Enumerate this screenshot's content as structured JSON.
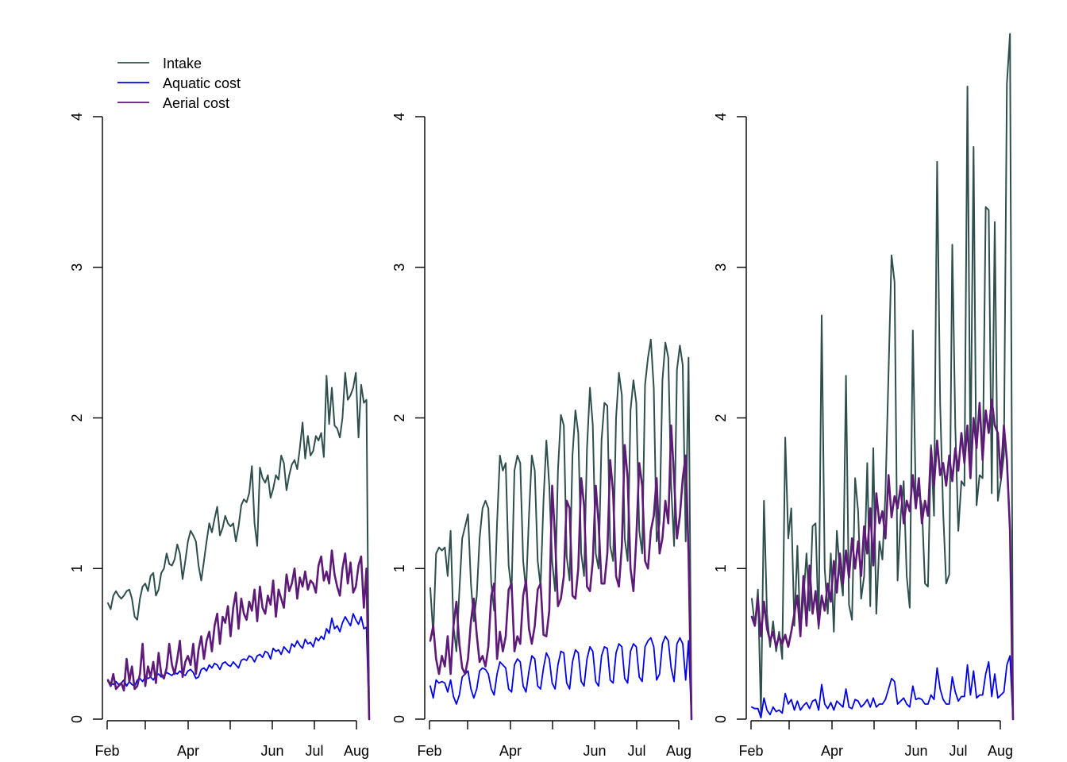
{
  "chart_data": [
    {
      "type": "line",
      "xlabel": "",
      "ylabel": "",
      "ylim": [
        0,
        4
      ],
      "x_tick_labels": [
        "Feb",
        "Apr",
        "Jun",
        "Jul",
        "Aug"
      ],
      "y_tick_labels": [
        "0",
        "1",
        "2",
        "3",
        "4"
      ],
      "legend": {
        "placement": "top-left",
        "entries": [
          "Intake",
          "Aquatic cost",
          "Aerial cost"
        ]
      },
      "series": [
        {
          "name": "Intake",
          "color": "#2F4F4F",
          "values": [
            0.77,
            0.73,
            0.82,
            0.85,
            0.82,
            0.8,
            0.82,
            0.85,
            0.86,
            0.8,
            0.68,
            0.66,
            0.8,
            0.88,
            0.9,
            0.85,
            0.95,
            0.97,
            0.82,
            0.86,
            0.97,
            1.0,
            1.1,
            1.03,
            1.02,
            1.06,
            1.16,
            1.1,
            0.93,
            1.05,
            1.18,
            1.25,
            1.22,
            1.18,
            1.02,
            0.92,
            1.05,
            1.18,
            1.3,
            1.24,
            1.33,
            1.41,
            1.22,
            1.27,
            1.35,
            1.3,
            1.28,
            1.3,
            1.18,
            1.28,
            1.42,
            1.46,
            1.44,
            1.5,
            1.68,
            1.3,
            1.15,
            1.67,
            1.6,
            1.57,
            1.62,
            1.47,
            1.53,
            1.62,
            1.59,
            1.75,
            1.7,
            1.52,
            1.62,
            1.69,
            1.72,
            1.66,
            1.8,
            1.97,
            1.73,
            1.88,
            1.75,
            1.78,
            1.88,
            1.85,
            1.9,
            1.74,
            2.28,
            1.96,
            2.2,
            1.95,
            1.93,
            1.87,
            2.0,
            2.3,
            2.12,
            2.15,
            2.2,
            2.3,
            1.87,
            2.22,
            2.1,
            2.12,
            0.0
          ]
        },
        {
          "name": "Aquatic cost",
          "color": "#0000EE",
          "values": [
            0.25,
            0.24,
            0.23,
            0.25,
            0.23,
            0.24,
            0.26,
            0.22,
            0.25,
            0.23,
            0.22,
            0.26,
            0.27,
            0.25,
            0.28,
            0.27,
            0.28,
            0.26,
            0.29,
            0.3,
            0.28,
            0.29,
            0.31,
            0.3,
            0.29,
            0.31,
            0.3,
            0.32,
            0.3,
            0.29,
            0.32,
            0.33,
            0.31,
            0.27,
            0.28,
            0.33,
            0.34,
            0.32,
            0.36,
            0.34,
            0.37,
            0.36,
            0.33,
            0.37,
            0.38,
            0.36,
            0.35,
            0.38,
            0.36,
            0.34,
            0.39,
            0.4,
            0.39,
            0.42,
            0.41,
            0.38,
            0.42,
            0.43,
            0.41,
            0.45,
            0.44,
            0.4,
            0.47,
            0.45,
            0.46,
            0.43,
            0.48,
            0.46,
            0.44,
            0.5,
            0.48,
            0.52,
            0.49,
            0.47,
            0.53,
            0.5,
            0.51,
            0.48,
            0.54,
            0.52,
            0.55,
            0.53,
            0.6,
            0.57,
            0.67,
            0.6,
            0.62,
            0.58,
            0.64,
            0.68,
            0.65,
            0.62,
            0.7,
            0.66,
            0.63,
            0.68,
            0.6,
            0.61,
            0.0
          ]
        },
        {
          "name": "Aerial cost",
          "color": "#5E1A78",
          "values": [
            0.26,
            0.22,
            0.3,
            0.2,
            0.22,
            0.24,
            0.19,
            0.4,
            0.25,
            0.35,
            0.2,
            0.22,
            0.3,
            0.5,
            0.22,
            0.35,
            0.28,
            0.38,
            0.24,
            0.44,
            0.3,
            0.27,
            0.34,
            0.5,
            0.36,
            0.3,
            0.4,
            0.52,
            0.28,
            0.38,
            0.42,
            0.36,
            0.5,
            0.3,
            0.46,
            0.55,
            0.4,
            0.52,
            0.58,
            0.45,
            0.62,
            0.7,
            0.5,
            0.68,
            0.64,
            0.75,
            0.55,
            0.74,
            0.84,
            0.6,
            0.8,
            0.7,
            0.66,
            0.78,
            0.72,
            0.86,
            0.65,
            0.88,
            0.74,
            0.7,
            0.82,
            0.76,
            0.92,
            0.68,
            0.86,
            0.8,
            0.74,
            0.96,
            0.85,
            0.9,
            1.0,
            0.8,
            0.94,
            0.88,
            0.98,
            0.86,
            0.92,
            0.9,
            0.84,
            1.02,
            1.08,
            0.92,
            0.98,
            0.9,
            1.12,
            0.96,
            0.88,
            0.82,
            1.0,
            1.1,
            0.9,
            1.04,
            0.84,
            0.88,
            1.02,
            1.08,
            0.74,
            1.0,
            0.0
          ]
        }
      ]
    },
    {
      "type": "line",
      "xlabel": "",
      "ylabel": "",
      "ylim": [
        0,
        4
      ],
      "x_tick_labels": [
        "Feb",
        "Apr",
        "Jun",
        "Jul",
        "Aug"
      ],
      "y_tick_labels": [
        "0",
        "1",
        "2",
        "3",
        "4"
      ],
      "series": [
        {
          "name": "Intake",
          "color": "#2F4F4F",
          "values": [
            0.87,
            0.56,
            1.1,
            1.14,
            1.12,
            1.14,
            0.95,
            1.25,
            0.62,
            0.45,
            0.85,
            1.2,
            1.28,
            1.36,
            0.9,
            0.65,
            0.82,
            1.2,
            1.4,
            1.45,
            1.4,
            0.9,
            0.72,
            1.3,
            1.75,
            1.65,
            1.7,
            1.02,
            0.85,
            1.65,
            1.75,
            1.7,
            1.05,
            0.85,
            1.35,
            1.75,
            1.65,
            1.05,
            0.88,
            1.45,
            1.85,
            1.55,
            1.05,
            0.85,
            1.65,
            2.02,
            1.95,
            1.08,
            0.92,
            1.75,
            2.05,
            1.9,
            1.1,
            0.95,
            1.8,
            2.2,
            1.95,
            1.1,
            1.0,
            1.85,
            2.1,
            2.08,
            1.15,
            1.05,
            2.0,
            2.3,
            2.15,
            1.2,
            1.05,
            2.05,
            2.25,
            2.1,
            1.25,
            1.1,
            2.22,
            2.4,
            2.52,
            2.2,
            1.18,
            1.3,
            2.25,
            2.5,
            2.4,
            1.55,
            1.15,
            2.32,
            2.48,
            2.35,
            1.18,
            2.4,
            0.0
          ]
        },
        {
          "name": "Aquatic cost",
          "color": "#0000EE",
          "values": [
            0.22,
            0.14,
            0.26,
            0.24,
            0.25,
            0.24,
            0.18,
            0.26,
            0.15,
            0.1,
            0.16,
            0.28,
            0.3,
            0.32,
            0.2,
            0.14,
            0.2,
            0.32,
            0.34,
            0.33,
            0.3,
            0.2,
            0.16,
            0.3,
            0.38,
            0.36,
            0.34,
            0.2,
            0.18,
            0.36,
            0.4,
            0.38,
            0.22,
            0.18,
            0.32,
            0.42,
            0.4,
            0.22,
            0.2,
            0.34,
            0.44,
            0.4,
            0.24,
            0.2,
            0.36,
            0.45,
            0.44,
            0.24,
            0.2,
            0.38,
            0.46,
            0.44,
            0.25,
            0.22,
            0.4,
            0.48,
            0.45,
            0.25,
            0.22,
            0.42,
            0.48,
            0.47,
            0.26,
            0.24,
            0.44,
            0.5,
            0.48,
            0.27,
            0.24,
            0.45,
            0.5,
            0.48,
            0.28,
            0.25,
            0.48,
            0.52,
            0.54,
            0.48,
            0.26,
            0.3,
            0.5,
            0.55,
            0.52,
            0.34,
            0.25,
            0.5,
            0.54,
            0.5,
            0.26,
            0.52,
            0.0
          ]
        },
        {
          "name": "Aerial cost",
          "color": "#5E1A78",
          "values": [
            0.52,
            0.62,
            0.4,
            0.3,
            0.42,
            0.35,
            0.55,
            0.3,
            0.62,
            0.78,
            0.5,
            0.34,
            0.3,
            0.4,
            0.65,
            0.8,
            0.56,
            0.38,
            0.42,
            0.35,
            0.48,
            0.82,
            0.9,
            0.4,
            0.58,
            0.45,
            0.55,
            0.86,
            0.9,
            0.45,
            0.55,
            0.5,
            0.82,
            0.92,
            0.6,
            0.5,
            0.62,
            0.86,
            0.9,
            0.56,
            0.55,
            0.72,
            1.55,
            1.2,
            0.75,
            0.8,
            0.95,
            1.45,
            1.4,
            0.82,
            0.8,
            1.0,
            1.6,
            1.42,
            0.88,
            0.85,
            1.05,
            1.55,
            1.3,
            0.9,
            0.9,
            1.1,
            1.72,
            1.5,
            0.95,
            0.88,
            1.15,
            1.82,
            1.6,
            1.0,
            0.85,
            1.2,
            1.7,
            1.55,
            1.05,
            1.0,
            1.25,
            1.35,
            1.6,
            1.1,
            1.2,
            1.45,
            1.3,
            1.95,
            1.6,
            1.2,
            1.35,
            1.6,
            1.75,
            1.1,
            0.0
          ]
        }
      ]
    },
    {
      "type": "line",
      "xlabel": "",
      "ylabel": "",
      "ylim": [
        0,
        4
      ],
      "x_tick_labels": [
        "Feb",
        "Apr",
        "Jun",
        "Jul",
        "Aug"
      ],
      "y_tick_labels": [
        "0",
        "1",
        "2",
        "3",
        "4"
      ],
      "series": [
        {
          "name": "Intake",
          "color": "#2F4F4F",
          "values": [
            0.8,
            0.62,
            0.86,
            0.04,
            1.45,
            0.7,
            0.48,
            0.65,
            0.45,
            0.58,
            0.4,
            1.87,
            1.2,
            1.4,
            0.62,
            1.15,
            0.58,
            0.8,
            1.1,
            0.72,
            1.28,
            1.3,
            0.6,
            2.68,
            1.0,
            0.7,
            1.1,
            0.58,
            1.25,
            0.98,
            0.82,
            2.28,
            0.76,
            0.66,
            1.6,
            1.38,
            0.8,
            0.95,
            1.7,
            0.75,
            1.8,
            0.7,
            1.18,
            1.06,
            1.5,
            2.3,
            3.08,
            2.9,
            0.92,
            1.35,
            1.58,
            0.95,
            0.74,
            2.58,
            1.45,
            1.5,
            1.42,
            0.9,
            0.88,
            1.82,
            1.35,
            3.7,
            2.1,
            1.38,
            0.9,
            0.96,
            3.15,
            1.94,
            1.25,
            1.58,
            1.55,
            4.2,
            1.65,
            3.8,
            1.42,
            1.62,
            1.6,
            3.4,
            3.38,
            1.5,
            3.3,
            1.45,
            1.58,
            1.75,
            4.22,
            4.55,
            0.0
          ]
        },
        {
          "name": "Aquatic cost",
          "color": "#0000EE",
          "values": [
            0.08,
            0.07,
            0.07,
            0.01,
            0.14,
            0.06,
            0.03,
            0.08,
            0.05,
            0.06,
            0.04,
            0.17,
            0.1,
            0.13,
            0.06,
            0.12,
            0.06,
            0.09,
            0.11,
            0.07,
            0.12,
            0.13,
            0.06,
            0.23,
            0.1,
            0.07,
            0.11,
            0.06,
            0.12,
            0.1,
            0.08,
            0.2,
            0.08,
            0.07,
            0.13,
            0.12,
            0.08,
            0.1,
            0.13,
            0.08,
            0.14,
            0.08,
            0.1,
            0.1,
            0.13,
            0.2,
            0.27,
            0.25,
            0.1,
            0.12,
            0.14,
            0.1,
            0.08,
            0.22,
            0.13,
            0.14,
            0.13,
            0.1,
            0.1,
            0.16,
            0.13,
            0.34,
            0.2,
            0.13,
            0.1,
            0.1,
            0.28,
            0.18,
            0.12,
            0.15,
            0.15,
            0.36,
            0.16,
            0.32,
            0.14,
            0.16,
            0.16,
            0.3,
            0.38,
            0.15,
            0.3,
            0.14,
            0.16,
            0.18,
            0.36,
            0.42,
            0.0
          ]
        },
        {
          "name": "Aerial cost",
          "color": "#5E1A78",
          "values": [
            0.68,
            0.62,
            0.8,
            0.55,
            0.78,
            0.6,
            0.52,
            0.58,
            0.48,
            0.55,
            0.5,
            0.56,
            0.48,
            0.58,
            0.7,
            0.82,
            0.55,
            0.95,
            0.62,
            1.02,
            0.7,
            0.85,
            0.62,
            0.82,
            0.72,
            0.9,
            0.78,
            1.05,
            0.84,
            1.1,
            0.9,
            1.12,
            0.94,
            1.2,
            1.0,
            1.18,
            0.95,
            1.28,
            1.1,
            1.4,
            1.02,
            1.5,
            1.3,
            1.38,
            1.2,
            1.62,
            1.34,
            1.48,
            1.4,
            1.55,
            1.3,
            1.45,
            1.38,
            1.62,
            1.4,
            1.6,
            1.3,
            1.45,
            1.35,
            1.8,
            1.55,
            1.85,
            1.62,
            1.7,
            1.55,
            1.75,
            1.58,
            1.8,
            1.65,
            1.9,
            1.7,
            1.95,
            1.6,
            2.0,
            1.8,
            2.1,
            1.72,
            2.05,
            1.9,
            2.12,
            1.95,
            1.9,
            1.6,
            1.95,
            1.72,
            1.25,
            0.0
          ]
        }
      ]
    }
  ]
}
